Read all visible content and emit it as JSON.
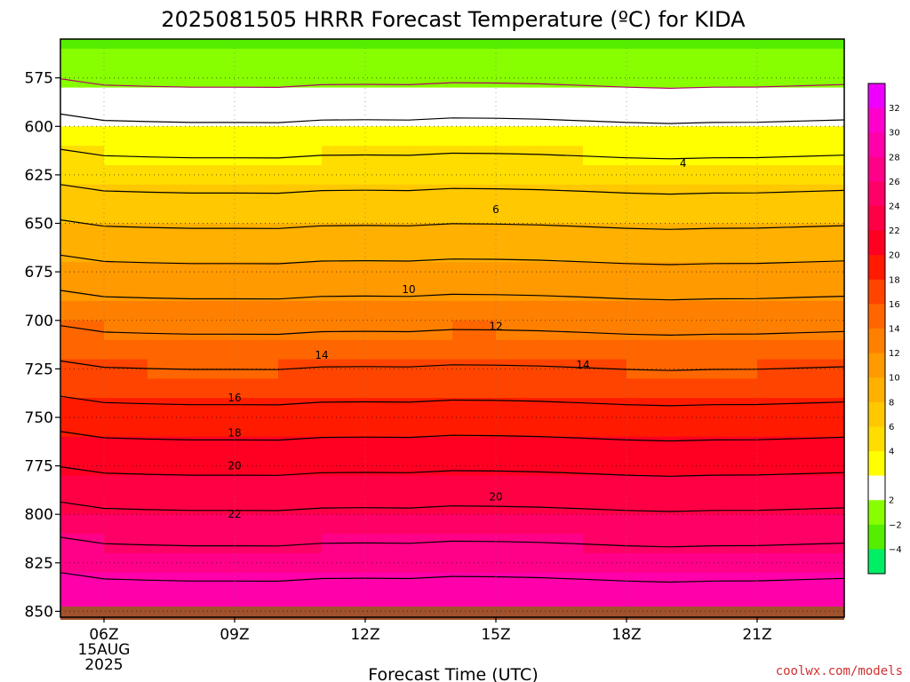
{
  "chart_data": {
    "type": "area",
    "title": "2025081505 HRRR Forecast Temperature (ºC) for KIDA",
    "xlabel": "Forecast Time (UTC)",
    "credit": "coolwx.com/models",
    "x_hours": [
      5,
      6,
      7,
      8,
      9,
      10,
      11,
      12,
      13,
      14,
      15,
      16,
      17,
      18,
      19,
      20,
      21,
      22,
      23
    ],
    "x_ticks": [
      {
        "hour": 6,
        "label": "06Z",
        "sub1": "15AUG",
        "sub2": "2025"
      },
      {
        "hour": 9,
        "label": "09Z"
      },
      {
        "hour": 12,
        "label": "12Z"
      },
      {
        "hour": 15,
        "label": "15Z"
      },
      {
        "hour": 18,
        "label": "18Z"
      },
      {
        "hour": 21,
        "label": "21Z"
      }
    ],
    "y_ticks": [
      575,
      600,
      625,
      650,
      675,
      700,
      725,
      750,
      775,
      800,
      825,
      850
    ],
    "y_range_hpa": [
      555,
      853
    ],
    "surface_hpa": 853,
    "surface_color": "#a0522d",
    "levels_hpa": [
      555,
      560,
      570,
      580,
      590,
      600,
      610,
      620,
      630,
      640,
      650,
      660,
      670,
      680,
      690,
      700,
      710,
      720,
      730,
      740,
      750,
      760,
      770,
      780,
      790,
      800,
      810,
      820,
      830,
      840,
      850,
      853
    ],
    "temperature_c": [
      [
        -2.25,
        -2.61,
        -2.68,
        -2.73,
        -2.73,
        -2.74,
        -2.59,
        -2.57,
        -2.59,
        -2.47,
        -2.49,
        -2.54,
        -2.63,
        -2.73,
        -2.79,
        -2.73,
        -2.72,
        -2.65,
        -2.58
      ],
      [
        -1.7,
        -2.06,
        -2.13,
        -2.18,
        -2.18,
        -2.19,
        -2.04,
        -2.02,
        -2.04,
        -1.92,
        -1.94,
        -1.99,
        -2.08,
        -2.18,
        -2.24,
        -2.18,
        -2.17,
        -2.1,
        -2.03
      ],
      [
        -0.6,
        -0.96,
        -1.03,
        -1.08,
        -1.08,
        -1.09,
        -0.94,
        -0.92,
        -0.94,
        -0.82,
        -0.84,
        -0.89,
        -0.98,
        -1.08,
        -1.14,
        -1.08,
        -1.07,
        -1.0,
        -0.93
      ],
      [
        0.5,
        0.14,
        0.07,
        0.02,
        0.02,
        0.01,
        0.16,
        0.18,
        0.16,
        0.28,
        0.26,
        0.21,
        0.12,
        0.02,
        -0.04,
        0.02,
        0.03,
        0.1,
        0.17
      ],
      [
        1.6,
        1.24,
        1.17,
        1.12,
        1.12,
        1.11,
        1.26,
        1.28,
        1.26,
        1.38,
        1.36,
        1.31,
        1.22,
        1.12,
        1.06,
        1.12,
        1.13,
        1.2,
        1.27
      ],
      [
        2.7,
        2.34,
        2.27,
        2.22,
        2.22,
        2.21,
        2.36,
        2.38,
        2.36,
        2.48,
        2.46,
        2.41,
        2.32,
        2.22,
        2.16,
        2.22,
        2.23,
        2.3,
        2.37
      ],
      [
        3.8,
        3.44,
        3.37,
        3.32,
        3.32,
        3.31,
        3.46,
        3.48,
        3.46,
        3.58,
        3.56,
        3.51,
        3.42,
        3.32,
        3.26,
        3.32,
        3.33,
        3.4,
        3.47
      ],
      [
        4.9,
        4.54,
        4.47,
        4.42,
        4.42,
        4.41,
        4.56,
        4.58,
        4.56,
        4.68,
        4.66,
        4.61,
        4.52,
        4.42,
        4.36,
        4.42,
        4.43,
        4.5,
        4.57
      ],
      [
        6.0,
        5.64,
        5.57,
        5.52,
        5.52,
        5.51,
        5.66,
        5.68,
        5.66,
        5.78,
        5.76,
        5.71,
        5.62,
        5.52,
        5.46,
        5.52,
        5.53,
        5.6,
        5.67
      ],
      [
        7.1,
        6.74,
        6.67,
        6.62,
        6.62,
        6.61,
        6.76,
        6.78,
        6.76,
        6.88,
        6.86,
        6.81,
        6.72,
        6.62,
        6.56,
        6.62,
        6.63,
        6.7,
        6.77
      ],
      [
        8.2,
        7.84,
        7.77,
        7.72,
        7.72,
        7.71,
        7.86,
        7.88,
        7.86,
        7.98,
        7.96,
        7.91,
        7.82,
        7.72,
        7.66,
        7.72,
        7.73,
        7.8,
        7.87
      ],
      [
        9.3,
        8.94,
        8.87,
        8.82,
        8.82,
        8.81,
        8.96,
        8.98,
        8.96,
        9.08,
        9.06,
        9.01,
        8.92,
        8.82,
        8.76,
        8.82,
        8.83,
        8.9,
        8.97
      ],
      [
        10.4,
        10.04,
        9.97,
        9.92,
        9.92,
        9.91,
        10.06,
        10.08,
        10.06,
        10.18,
        10.16,
        10.11,
        10.02,
        9.92,
        9.86,
        9.92,
        9.93,
        10.0,
        10.07
      ],
      [
        11.5,
        11.14,
        11.07,
        11.02,
        11.02,
        11.01,
        11.16,
        11.18,
        11.16,
        11.28,
        11.26,
        11.21,
        11.12,
        11.02,
        10.96,
        11.02,
        11.03,
        11.1,
        11.17
      ],
      [
        12.6,
        12.24,
        12.17,
        12.12,
        12.12,
        12.11,
        12.26,
        12.28,
        12.26,
        12.38,
        12.36,
        12.31,
        12.22,
        12.12,
        12.06,
        12.12,
        12.13,
        12.2,
        12.27
      ],
      [
        13.7,
        13.34,
        13.27,
        13.22,
        13.22,
        13.21,
        13.36,
        13.38,
        13.36,
        13.48,
        13.46,
        13.41,
        13.32,
        13.22,
        13.16,
        13.22,
        13.23,
        13.3,
        13.37
      ],
      [
        14.8,
        14.44,
        14.37,
        14.32,
        14.32,
        14.31,
        14.46,
        14.48,
        14.46,
        14.58,
        14.56,
        14.51,
        14.42,
        14.32,
        14.26,
        14.32,
        14.33,
        14.4,
        14.47
      ],
      [
        15.9,
        15.54,
        15.47,
        15.42,
        15.42,
        15.41,
        15.56,
        15.58,
        15.56,
        15.68,
        15.66,
        15.61,
        15.52,
        15.42,
        15.36,
        15.42,
        15.43,
        15.5,
        15.57
      ],
      [
        17.0,
        16.64,
        16.57,
        16.52,
        16.52,
        16.51,
        16.66,
        16.68,
        16.66,
        16.78,
        16.76,
        16.71,
        16.62,
        16.52,
        16.46,
        16.52,
        16.53,
        16.6,
        16.67
      ],
      [
        18.1,
        17.74,
        17.67,
        17.62,
        17.62,
        17.61,
        17.76,
        17.78,
        17.76,
        17.88,
        17.86,
        17.81,
        17.72,
        17.62,
        17.56,
        17.62,
        17.63,
        17.7,
        17.77
      ],
      [
        19.2,
        18.84,
        18.77,
        18.72,
        18.72,
        18.71,
        18.86,
        18.88,
        18.86,
        18.98,
        18.96,
        18.91,
        18.82,
        18.72,
        18.66,
        18.72,
        18.73,
        18.8,
        18.87
      ],
      [
        20.3,
        19.94,
        19.87,
        19.82,
        19.82,
        19.81,
        19.96,
        19.98,
        19.96,
        20.08,
        20.06,
        20.01,
        19.92,
        19.82,
        19.76,
        19.82,
        19.83,
        19.9,
        19.97
      ],
      [
        21.4,
        21.04,
        20.97,
        20.92,
        20.92,
        20.91,
        21.06,
        21.08,
        21.06,
        21.18,
        21.16,
        21.11,
        21.02,
        20.92,
        20.86,
        20.92,
        20.93,
        21.0,
        21.07
      ],
      [
        22.5,
        22.14,
        22.07,
        22.02,
        22.02,
        22.01,
        22.16,
        22.18,
        22.16,
        22.28,
        22.26,
        22.21,
        22.12,
        22.02,
        21.96,
        22.02,
        22.03,
        22.1,
        22.17
      ],
      [
        23.6,
        23.24,
        23.17,
        23.12,
        23.12,
        23.11,
        23.26,
        23.28,
        23.26,
        23.38,
        23.36,
        23.31,
        23.22,
        23.12,
        23.06,
        23.12,
        23.13,
        23.2,
        23.27
      ],
      [
        24.7,
        24.34,
        24.27,
        24.22,
        24.22,
        24.21,
        24.36,
        24.38,
        24.36,
        24.48,
        24.46,
        24.41,
        24.32,
        24.22,
        24.16,
        24.22,
        24.23,
        24.3,
        24.37
      ],
      [
        25.8,
        25.44,
        25.37,
        25.32,
        25.32,
        25.31,
        25.46,
        25.48,
        25.46,
        25.58,
        25.56,
        25.51,
        25.42,
        25.32,
        25.26,
        25.32,
        25.33,
        25.4,
        25.47
      ],
      [
        26.9,
        26.54,
        26.47,
        26.42,
        26.42,
        26.41,
        26.56,
        26.58,
        26.56,
        26.68,
        26.66,
        26.61,
        26.52,
        26.42,
        26.36,
        26.42,
        26.43,
        26.5,
        26.57
      ],
      [
        28.0,
        27.64,
        27.57,
        27.52,
        27.52,
        27.51,
        27.66,
        27.68,
        27.66,
        27.78,
        27.76,
        27.71,
        27.62,
        27.52,
        27.46,
        27.52,
        27.53,
        27.6,
        27.67
      ],
      [
        29.1,
        28.74,
        28.67,
        28.62,
        28.62,
        28.61,
        28.76,
        28.78,
        28.76,
        28.88,
        28.86,
        28.81,
        28.72,
        28.62,
        28.56,
        28.62,
        28.63,
        28.7,
        28.77
      ],
      [
        30.2,
        29.84,
        29.77,
        29.72,
        29.72,
        29.71,
        29.86,
        29.88,
        29.86,
        29.98,
        29.96,
        29.91,
        29.82,
        29.72,
        29.66,
        29.72,
        29.73,
        29.8,
        29.87
      ],
      [
        30.53,
        30.17,
        30.1,
        30.05,
        30.05,
        30.04,
        30.19,
        30.21,
        30.19,
        30.31,
        30.29,
        30.24,
        30.15,
        30.05,
        29.99,
        30.05,
        30.06,
        30.13,
        30.2
      ]
    ],
    "contour_interval_c": 2,
    "contour_labels": [
      {
        "value": 4,
        "hour": 19.3,
        "hpa": 619
      },
      {
        "value": 6,
        "hour": 15.0,
        "hpa": 643
      },
      {
        "value": 10,
        "hour": 13.0,
        "hpa": 684
      },
      {
        "value": 12,
        "hour": 15.0,
        "hpa": 703
      },
      {
        "value": 14,
        "hour": 11.0,
        "hpa": 718
      },
      {
        "value": 14,
        "hour": 17.0,
        "hpa": 723
      },
      {
        "value": 16,
        "hour": 9.0,
        "hpa": 740
      },
      {
        "value": 18,
        "hour": 9.0,
        "hpa": 758
      },
      {
        "value": 20,
        "hour": 9.0,
        "hpa": 775
      },
      {
        "value": 20,
        "hour": 15.0,
        "hpa": 791
      },
      {
        "value": 22,
        "hour": 9.0,
        "hpa": 800
      }
    ],
    "colorbar": {
      "labels": [
        "32",
        "30",
        "28",
        "26",
        "24",
        "22",
        "20",
        "18",
        "16",
        "14",
        "12",
        "10",
        "8",
        "6",
        "4",
        "2",
        "−2",
        "−4"
      ],
      "bins": [
        {
          "min": -6,
          "max": -4,
          "color": "#00ee66"
        },
        {
          "min": -4,
          "max": -2,
          "color": "#55ee00"
        },
        {
          "min": -2,
          "max": 0,
          "color": "#88ff00"
        },
        {
          "min": 0,
          "max": 2,
          "color": "#ffffff"
        },
        {
          "min": 2,
          "max": 4,
          "color": "#ffff00"
        },
        {
          "min": 4,
          "max": 6,
          "color": "#ffdd00"
        },
        {
          "min": 6,
          "max": 8,
          "color": "#ffc800"
        },
        {
          "min": 8,
          "max": 10,
          "color": "#ffb000"
        },
        {
          "min": 10,
          "max": 12,
          "color": "#ff9a00"
        },
        {
          "min": 12,
          "max": 14,
          "color": "#ff8000"
        },
        {
          "min": 14,
          "max": 16,
          "color": "#ff6600"
        },
        {
          "min": 16,
          "max": 18,
          "color": "#ff4400"
        },
        {
          "min": 18,
          "max": 20,
          "color": "#ff1a00"
        },
        {
          "min": 20,
          "max": 22,
          "color": "#ff0022"
        },
        {
          "min": 22,
          "max": 24,
          "color": "#ff0044"
        },
        {
          "min": 24,
          "max": 26,
          "color": "#ff0066"
        },
        {
          "min": 26,
          "max": 28,
          "color": "#ff0088"
        },
        {
          "min": 28,
          "max": 30,
          "color": "#ff00aa"
        },
        {
          "min": 30,
          "max": 32,
          "color": "#ff00cc"
        },
        {
          "min": 32,
          "max": 34,
          "color": "#ee00ff"
        }
      ]
    },
    "grid": "dotted"
  }
}
